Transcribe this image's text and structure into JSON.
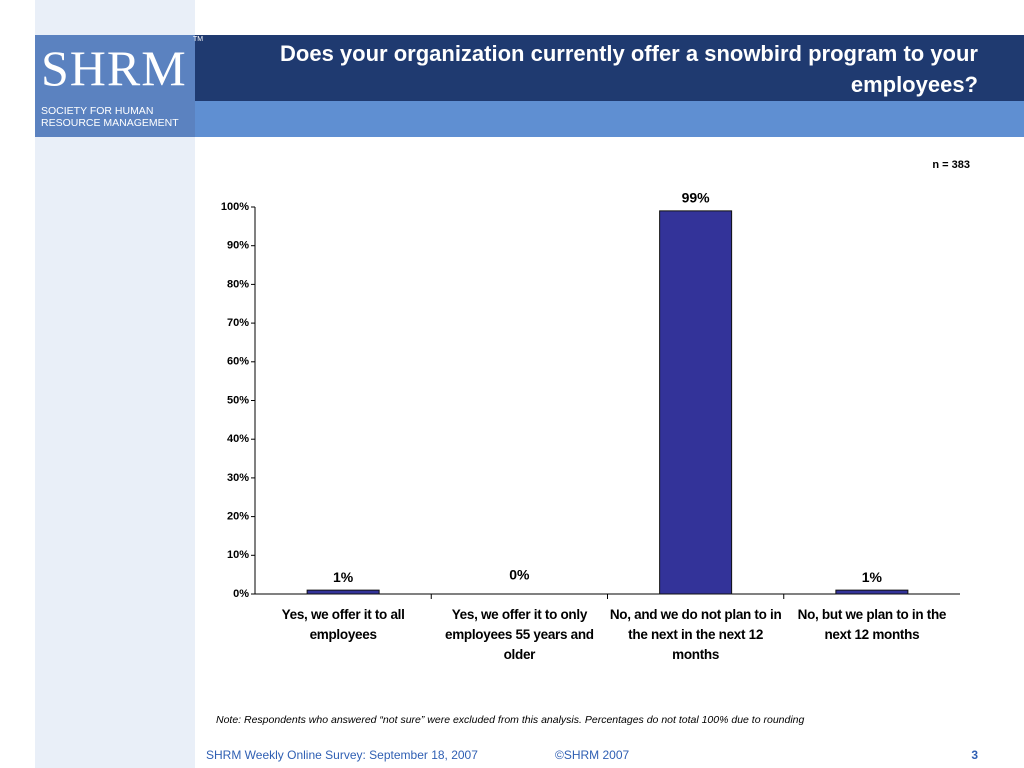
{
  "logo": {
    "mark": "SHRM",
    "tm": "TM",
    "line1": "SOCIETY FOR HUMAN",
    "line2": "RESOURCE MANAGEMENT"
  },
  "chart_data": {
    "type": "bar",
    "title": "Does your organization currently offer a snowbird program to your employees?",
    "subtitle": "n = 383",
    "categories": [
      "Yes, we offer it to all employees",
      "Yes, we offer it to only employees 55 years and older",
      "No, and we do not plan to in the next in the next 12 months",
      "No, but we plan to in the next 12 months"
    ],
    "values": [
      1,
      0,
      99,
      1
    ],
    "value_labels": [
      "1%",
      "0%",
      "99%",
      "1%"
    ],
    "color": "#333399",
    "ylim": [
      0,
      100
    ],
    "yticks": [
      {
        "value": 0,
        "label": "0%"
      },
      {
        "value": 10,
        "label": "10%"
      },
      {
        "value": 20,
        "label": "20%"
      },
      {
        "value": 30,
        "label": "30%"
      },
      {
        "value": 40,
        "label": "40%"
      },
      {
        "value": 50,
        "label": "50%"
      },
      {
        "value": 60,
        "label": "60%"
      },
      {
        "value": 70,
        "label": "70%"
      },
      {
        "value": 80,
        "label": "80%"
      },
      {
        "value": 90,
        "label": "90%"
      },
      {
        "value": 100,
        "label": "100%"
      }
    ],
    "annotation": "Note: Respondents who answered “not sure” were excluded from this analysis. Percentages do not total 100% due to rounding"
  },
  "footer": {
    "source": "SHRM Weekly Online Survey: September 18, 2007",
    "copyright": "©SHRM 2007",
    "page": "3"
  }
}
